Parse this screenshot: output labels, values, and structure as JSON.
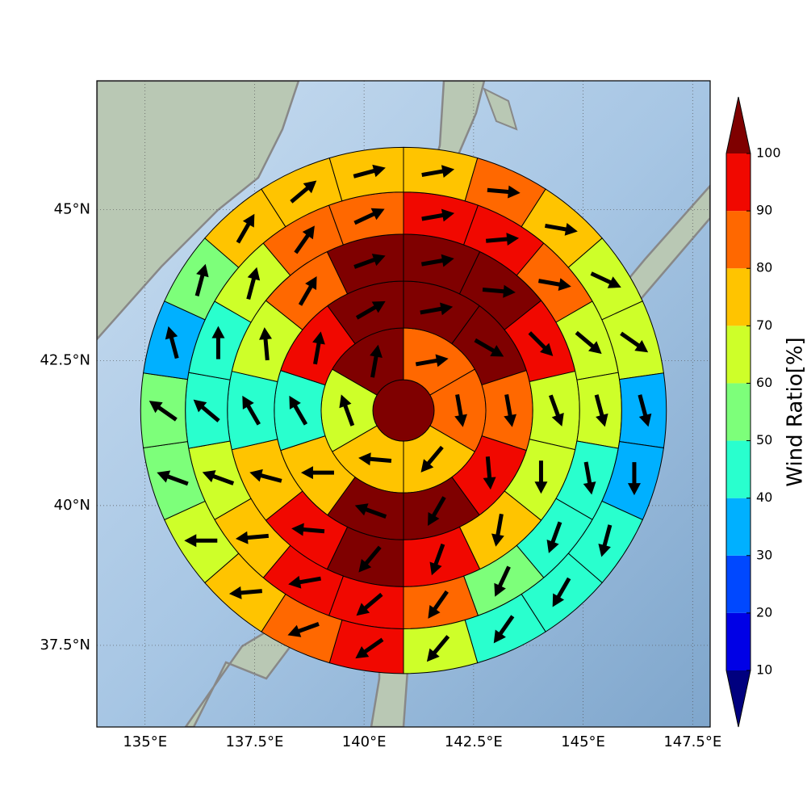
{
  "chart_data": {
    "type": "polar-sector-map",
    "projection": "mercator",
    "xlim": [
      133.9,
      147.9
    ],
    "ylim": [
      36.0,
      47.05
    ],
    "xticks": [
      {
        "value": 135,
        "label": "135°E"
      },
      {
        "value": 137.5,
        "label": "137.5°E"
      },
      {
        "value": 140,
        "label": "140°E"
      },
      {
        "value": 142.5,
        "label": "142.5°E"
      },
      {
        "value": 145,
        "label": "145°E"
      },
      {
        "value": 147.5,
        "label": "147.5°E"
      }
    ],
    "yticks": [
      {
        "value": 37.5,
        "label": "37.5°N"
      },
      {
        "value": 40,
        "label": "40°N"
      },
      {
        "value": 42.5,
        "label": "42.5°N"
      },
      {
        "value": 45,
        "label": "45°N"
      }
    ],
    "grid": true,
    "center": [
      140.9,
      41.65
    ],
    "ring_radii_deg": [
      0.7,
      1.88,
      2.95,
      4.02,
      4.98,
      6.0
    ],
    "rings": [
      {
        "values": [
          105
        ],
        "directions": [
          null
        ]
      },
      {
        "values": [
          85,
          85,
          75,
          75,
          65,
          105
        ],
        "directions": [
          80,
          170,
          220,
          275,
          340,
          10
        ]
      },
      {
        "values": [
          105,
          105,
          85,
          95,
          105,
          105,
          75,
          45,
          95,
          105
        ],
        "directions": [
          80,
          120,
          170,
          175,
          210,
          290,
          270,
          330,
          10,
          60
        ]
      },
      {
        "values": [
          105,
          105,
          95,
          65,
          65,
          75,
          95,
          105,
          95,
          75,
          45,
          65,
          85,
          105
        ],
        "directions": [
          80,
          95,
          135,
          160,
          180,
          190,
          200,
          220,
          275,
          285,
          330,
          355,
          30,
          70
        ]
      },
      {
        "values": [
          95,
          95,
          85,
          65,
          65,
          45,
          45,
          55,
          85,
          95,
          95,
          75,
          65,
          45,
          45,
          65,
          85,
          85
        ],
        "directions": [
          80,
          85,
          100,
          130,
          165,
          170,
          200,
          205,
          215,
          230,
          260,
          265,
          290,
          310,
          0,
          15,
          35,
          65
        ]
      },
      {
        "values": [
          75,
          85,
          75,
          65,
          65,
          35,
          35,
          45,
          45,
          45,
          65,
          95,
          85,
          75,
          65,
          55,
          55,
          35,
          55,
          75,
          75,
          75
        ],
        "directions": [
          80,
          95,
          100,
          115,
          125,
          165,
          180,
          195,
          210,
          215,
          220,
          235,
          250,
          265,
          270,
          290,
          305,
          345,
          15,
          30,
          50,
          75
        ]
      }
    ],
    "colorbar": {
      "label": "Wind Ratio[%]",
      "ticks": [
        10,
        20,
        30,
        40,
        50,
        60,
        70,
        80,
        90,
        100
      ],
      "colors": [
        "#0000e6",
        "#0048ff",
        "#00b0ff",
        "#29ffce",
        "#7dff7a",
        "#ceff29",
        "#ffc400",
        "#ff6800",
        "#f10800"
      ],
      "under_color": "#00007f",
      "over_color": "#7f0000"
    }
  }
}
